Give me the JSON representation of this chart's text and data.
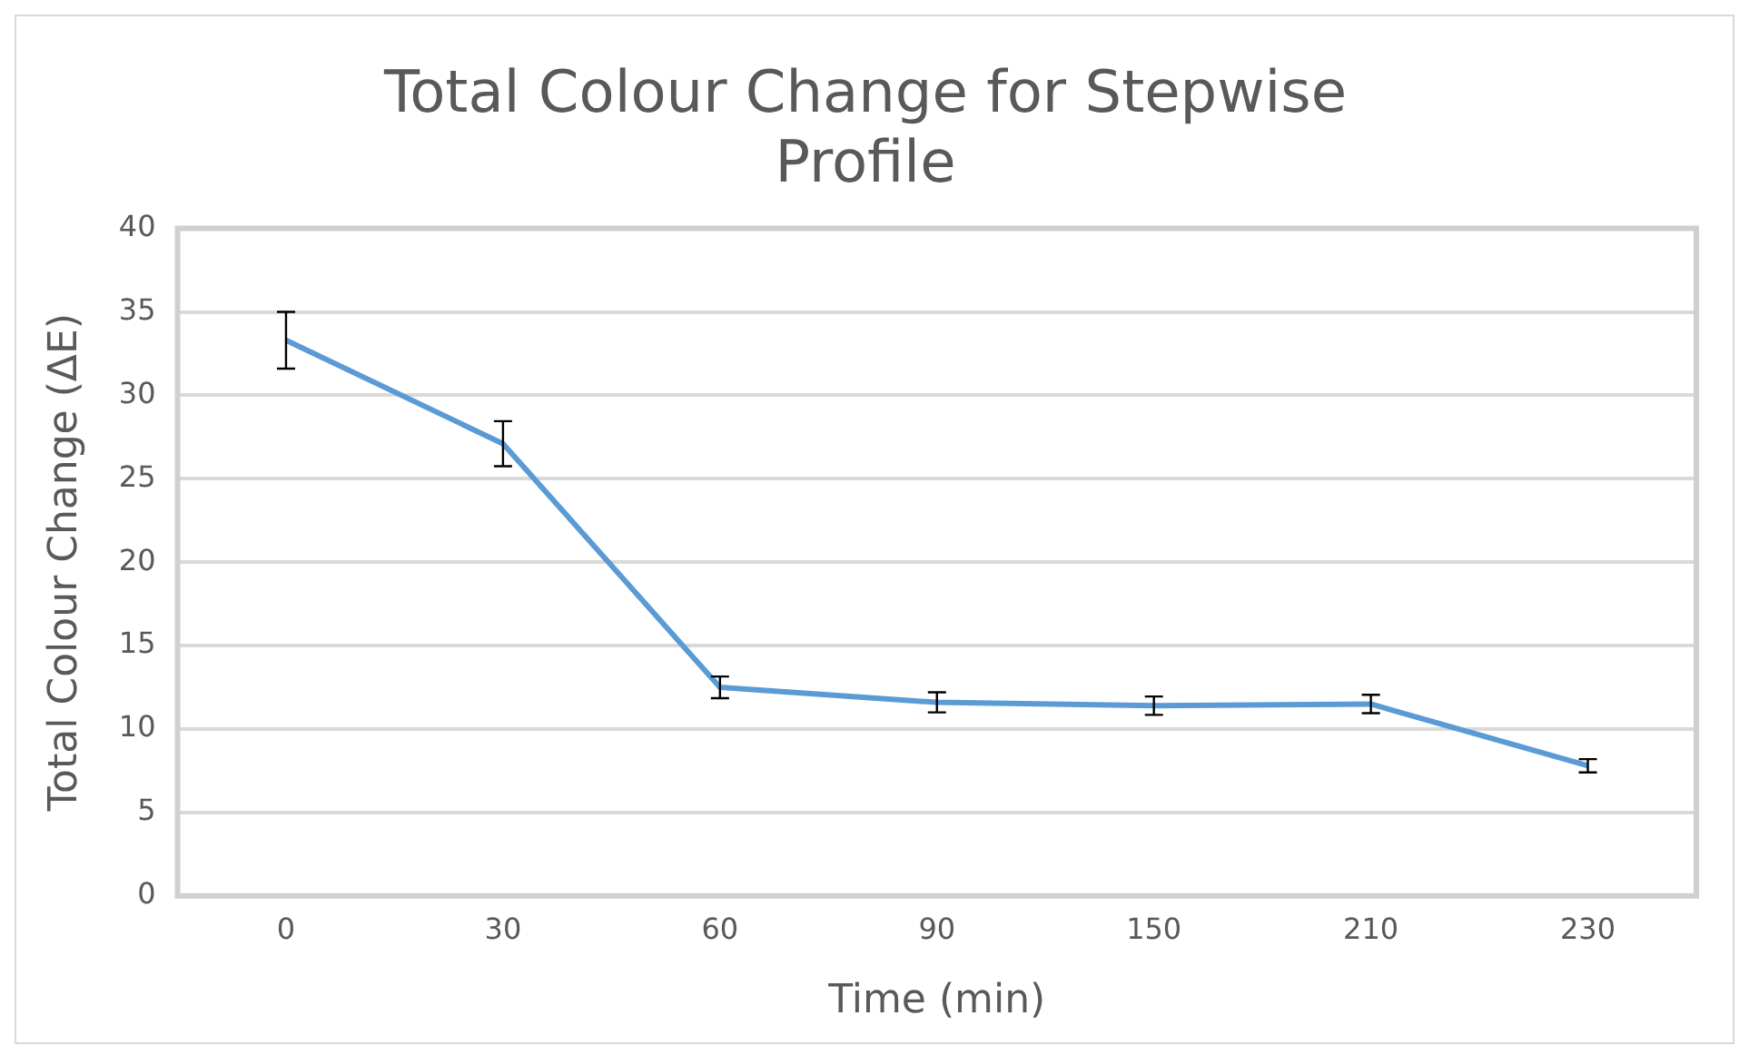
{
  "chart_data": {
    "type": "line",
    "title": "Total Colour Change for Stepwise Profile",
    "xlabel": "Time (min)",
    "ylabel": "Total Colour Change (ΔE)",
    "categories": [
      "0",
      "30",
      "60",
      "90",
      "150",
      "210",
      "230"
    ],
    "series": [
      {
        "color": "#5b9bd5",
        "values": [
          33.3,
          27.1,
          12.5,
          11.6,
          11.4,
          11.5,
          7.8
        ],
        "errors": [
          1.7,
          1.35,
          0.65,
          0.6,
          0.55,
          0.55,
          0.4
        ]
      }
    ],
    "ylim": [
      0,
      40
    ],
    "yticks": [
      0,
      5,
      10,
      15,
      20,
      25,
      30,
      35,
      40
    ],
    "grid": "y",
    "legend": false,
    "line_style": "solid"
  }
}
